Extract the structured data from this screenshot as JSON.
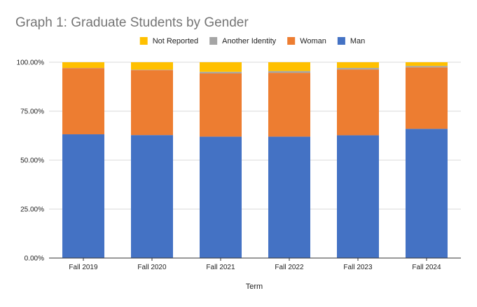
{
  "chart_data": {
    "type": "bar",
    "stacked": true,
    "title": "Graph 1: Graduate Students by Gender",
    "xlabel": "Term",
    "ylabel": "",
    "ylim": [
      0,
      100
    ],
    "y_ticks": [
      "0.00%",
      "25.00%",
      "50.00%",
      "75.00%",
      "100.00%"
    ],
    "categories": [
      "Fall 2019",
      "Fall 2020",
      "Fall 2021",
      "Fall 2022",
      "Fall 2023",
      "Fall 2024"
    ],
    "legend_position": "top",
    "grid": true,
    "legend_order": [
      "Not Reported",
      "Another Identity",
      "Woman",
      "Man"
    ],
    "series": [
      {
        "name": "Man",
        "color": "#4472c4",
        "values": [
          63.2,
          62.8,
          62.0,
          62.0,
          62.7,
          66.0
        ]
      },
      {
        "name": "Woman",
        "color": "#ed7d31",
        "values": [
          33.8,
          33.2,
          32.3,
          32.6,
          33.6,
          31.4
        ]
      },
      {
        "name": "Another Identity",
        "color": "#a5a5a5",
        "values": [
          0.1,
          0.2,
          0.8,
          0.9,
          0.8,
          0.7
        ]
      },
      {
        "name": "Not Reported",
        "color": "#ffc000",
        "values": [
          2.9,
          3.8,
          4.9,
          4.5,
          2.9,
          1.9
        ]
      }
    ]
  }
}
